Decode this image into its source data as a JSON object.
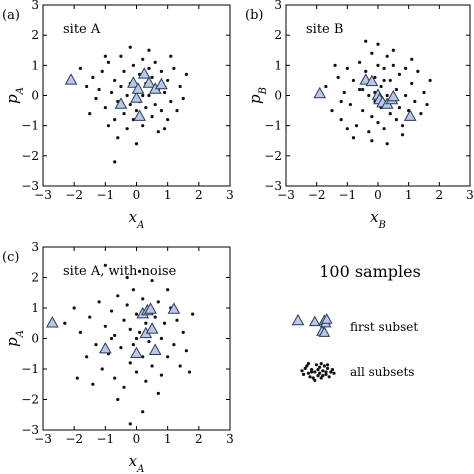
{
  "figure": {
    "legend_title": "100 samples",
    "legend_first": "first subset",
    "legend_all": "all subsets"
  },
  "colors": {
    "triangle_fill": "#b8c9e8",
    "triangle_stroke": "#2b3a55",
    "dot": "#111111"
  },
  "chart_data": [
    {
      "type": "scatter",
      "panel_label": "(a)",
      "annotation": "site A",
      "xlabel": "x_A",
      "ylabel": "p_A",
      "xlim": [
        -3,
        3
      ],
      "ylim": [
        -3,
        3
      ],
      "xticks": [
        "−3",
        "−2",
        "−1",
        "0",
        "1",
        "2",
        "3"
      ],
      "yticks": [
        "−3",
        "−2",
        "−1",
        "0",
        "1",
        "2",
        "3"
      ],
      "series": [
        {
          "role": "all_subsets",
          "points": [
            [
              -1.8,
              0.9
            ],
            [
              -1.6,
              0.3
            ],
            [
              -1.4,
              0.6
            ],
            [
              -1.3,
              -0.1
            ],
            [
              -1.2,
              0.2
            ],
            [
              -1.1,
              0.8
            ],
            [
              -1.0,
              -0.4
            ],
            [
              -0.9,
              1.1
            ],
            [
              -0.8,
              0.1
            ],
            [
              -0.7,
              -0.8
            ],
            [
              -0.7,
              0.5
            ],
            [
              -0.6,
              -0.2
            ],
            [
              -0.5,
              1.3
            ],
            [
              -0.5,
              0.3
            ],
            [
              -0.4,
              -0.6
            ],
            [
              -0.4,
              0.8
            ],
            [
              -0.3,
              0.0
            ],
            [
              -0.3,
              -1.1
            ],
            [
              -0.2,
              0.4
            ],
            [
              -0.2,
              -0.3
            ],
            [
              -0.1,
              1.0
            ],
            [
              -0.1,
              -0.8
            ],
            [
              0.0,
              0.2
            ],
            [
              0.0,
              -0.5
            ],
            [
              0.1,
              0.7
            ],
            [
              0.1,
              -0.2
            ],
            [
              0.2,
              1.2
            ],
            [
              0.2,
              -1.0
            ],
            [
              0.3,
              0.4
            ],
            [
              0.3,
              -0.4
            ],
            [
              0.4,
              0.9
            ],
            [
              0.4,
              0.0
            ],
            [
              0.5,
              -0.7
            ],
            [
              0.5,
              0.6
            ],
            [
              0.6,
              -0.3
            ],
            [
              0.6,
              1.1
            ],
            [
              0.7,
              0.2
            ],
            [
              0.7,
              -1.2
            ],
            [
              0.8,
              -0.5
            ],
            [
              0.8,
              0.8
            ],
            [
              0.9,
              0.1
            ],
            [
              1.0,
              -0.8
            ],
            [
              1.0,
              0.5
            ],
            [
              1.1,
              -0.2
            ],
            [
              1.2,
              0.9
            ],
            [
              1.3,
              -0.5
            ],
            [
              1.4,
              0.3
            ],
            [
              1.5,
              -0.1
            ],
            [
              1.6,
              0.7
            ],
            [
              -0.6,
              -1.4
            ],
            [
              0.0,
              -1.6
            ],
            [
              -0.7,
              -2.2
            ],
            [
              0.4,
              1.5
            ],
            [
              -1.5,
              -0.6
            ],
            [
              1.1,
              1.3
            ],
            [
              -0.2,
              1.6
            ],
            [
              0.9,
              -1.1
            ],
            [
              -1.0,
              1.3
            ],
            [
              0.2,
              0.0
            ],
            [
              -0.9,
              -1.0
            ]
          ]
        },
        {
          "role": "first_subset",
          "points": [
            [
              -2.1,
              0.5
            ],
            [
              -0.5,
              -0.3
            ],
            [
              -0.1,
              0.4
            ],
            [
              0.0,
              -0.1
            ],
            [
              0.05,
              0.2
            ],
            [
              0.1,
              -0.7
            ],
            [
              0.25,
              0.7
            ],
            [
              0.4,
              0.4
            ],
            [
              0.6,
              0.2
            ],
            [
              0.8,
              0.35
            ]
          ]
        }
      ]
    },
    {
      "type": "scatter",
      "panel_label": "(b)",
      "annotation": "site B",
      "xlabel": "x_B",
      "ylabel": "p_B",
      "xlim": [
        -3,
        3
      ],
      "ylim": [
        -3,
        3
      ],
      "xticks": [
        "−3",
        "−2",
        "−1",
        "0",
        "1",
        "2",
        "3"
      ],
      "yticks": [
        "−3",
        "−2",
        "−1",
        "0",
        "1",
        "2",
        "3"
      ],
      "series": [
        {
          "role": "all_subsets",
          "points": [
            [
              -1.7,
              0.3
            ],
            [
              -1.5,
              -0.5
            ],
            [
              -1.3,
              0.6
            ],
            [
              -1.2,
              -0.8
            ],
            [
              -1.1,
              0.1
            ],
            [
              -1.0,
              0.9
            ],
            [
              -0.9,
              -0.3
            ],
            [
              -0.8,
              0.5
            ],
            [
              -0.7,
              -1.0
            ],
            [
              -0.6,
              0.2
            ],
            [
              -0.6,
              1.1
            ],
            [
              -0.5,
              -0.5
            ],
            [
              -0.4,
              0.8
            ],
            [
              -0.3,
              -1.2
            ],
            [
              -0.3,
              0.0
            ],
            [
              -0.2,
              1.4
            ],
            [
              -0.2,
              -0.7
            ],
            [
              -0.1,
              0.6
            ],
            [
              -0.1,
              -0.2
            ],
            [
              0.0,
              1.0
            ],
            [
              0.0,
              -0.9
            ],
            [
              0.1,
              0.3
            ],
            [
              0.1,
              -0.4
            ],
            [
              0.2,
              0.9
            ],
            [
              0.2,
              -1.1
            ],
            [
              0.3,
              0.0
            ],
            [
              0.3,
              1.3
            ],
            [
              0.4,
              -0.6
            ],
            [
              0.4,
              0.5
            ],
            [
              0.5,
              -0.2
            ],
            [
              0.5,
              1.0
            ],
            [
              0.6,
              -0.8
            ],
            [
              0.6,
              0.2
            ],
            [
              0.7,
              -0.4
            ],
            [
              0.7,
              0.7
            ],
            [
              0.8,
              -1.0
            ],
            [
              0.9,
              0.0
            ],
            [
              0.9,
              0.9
            ],
            [
              1.0,
              -0.5
            ],
            [
              1.1,
              0.4
            ],
            [
              1.2,
              -0.2
            ],
            [
              1.3,
              0.8
            ],
            [
              1.4,
              -0.6
            ],
            [
              1.5,
              0.1
            ],
            [
              1.6,
              -0.3
            ],
            [
              -0.4,
              1.8
            ],
            [
              -0.8,
              -1.4
            ],
            [
              0.0,
              1.7
            ],
            [
              0.3,
              -1.6
            ],
            [
              -1.4,
              1.0
            ],
            [
              1.1,
              1.2
            ],
            [
              -0.1,
              0.1
            ],
            [
              0.8,
              -1.3
            ],
            [
              -1.0,
              -1.1
            ],
            [
              -0.5,
              0.2
            ],
            [
              0.2,
              0.5
            ],
            [
              1.7,
              0.5
            ],
            [
              -1.2,
              -0.2
            ],
            [
              0.5,
              1.5
            ],
            [
              -0.2,
              -1.5
            ]
          ]
        },
        {
          "role": "first_subset",
          "points": [
            [
              -1.9,
              0.05
            ],
            [
              -0.4,
              0.5
            ],
            [
              -0.2,
              0.45
            ],
            [
              0.0,
              0.0
            ],
            [
              0.05,
              -0.15
            ],
            [
              0.15,
              -0.25
            ],
            [
              0.3,
              -0.3
            ],
            [
              0.45,
              -0.15
            ],
            [
              0.5,
              -0.05
            ],
            [
              1.05,
              -0.7
            ]
          ]
        }
      ]
    },
    {
      "type": "scatter",
      "panel_label": "(c)",
      "annotation": "site A, with noise",
      "xlabel": "x_A",
      "ylabel": "p_A",
      "xlim": [
        -3,
        3
      ],
      "ylim": [
        -3,
        3
      ],
      "xticks": [
        "−3",
        "−2",
        "−1",
        "0",
        "1",
        "2",
        "3"
      ],
      "yticks": [
        "−3",
        "−2",
        "−1",
        "0",
        "1",
        "2",
        "3"
      ],
      "series": [
        {
          "role": "all_subsets",
          "points": [
            [
              -2.0,
              1.0
            ],
            [
              -1.8,
              0.2
            ],
            [
              -1.6,
              -0.6
            ],
            [
              -1.5,
              0.7
            ],
            [
              -1.3,
              -0.2
            ],
            [
              -1.2,
              1.2
            ],
            [
              -1.1,
              -1.0
            ],
            [
              -1.0,
              0.4
            ],
            [
              -0.9,
              -0.5
            ],
            [
              -0.8,
              0.9
            ],
            [
              -0.7,
              -1.3
            ],
            [
              -0.7,
              0.1
            ],
            [
              -0.6,
              1.4
            ],
            [
              -0.5,
              -0.3
            ],
            [
              -0.4,
              0.6
            ],
            [
              -0.4,
              -1.6
            ],
            [
              -0.3,
              1.1
            ],
            [
              -0.2,
              -0.8
            ],
            [
              -0.2,
              0.3
            ],
            [
              -0.1,
              1.6
            ],
            [
              -0.1,
              -0.2
            ],
            [
              0.0,
              0.8
            ],
            [
              0.0,
              -1.1
            ],
            [
              0.1,
              0.2
            ],
            [
              0.2,
              1.3
            ],
            [
              0.2,
              -0.6
            ],
            [
              0.3,
              0.5
            ],
            [
              0.3,
              -1.4
            ],
            [
              0.4,
              1.0
            ],
            [
              0.4,
              -0.1
            ],
            [
              0.5,
              -0.9
            ],
            [
              0.6,
              0.7
            ],
            [
              0.6,
              -0.4
            ],
            [
              0.7,
              1.2
            ],
            [
              0.8,
              0.0
            ],
            [
              0.8,
              -1.2
            ],
            [
              0.9,
              0.5
            ],
            [
              1.0,
              -0.6
            ],
            [
              1.1,
              1.0
            ],
            [
              1.2,
              -0.2
            ],
            [
              1.3,
              0.6
            ],
            [
              1.4,
              -0.9
            ],
            [
              1.5,
              0.2
            ],
            [
              1.6,
              -0.4
            ],
            [
              1.8,
              0.8
            ],
            [
              -0.3,
              2.0
            ],
            [
              0.1,
              2.2
            ],
            [
              0.2,
              -2.4
            ],
            [
              -1.0,
              2.4
            ],
            [
              -0.2,
              -2.8
            ],
            [
              -1.9,
              -1.3
            ],
            [
              1.7,
              -1.1
            ],
            [
              -2.3,
              0.5
            ],
            [
              0.5,
              1.9
            ],
            [
              -0.6,
              -2.0
            ],
            [
              1.0,
              1.6
            ],
            [
              -1.4,
              -1.5
            ],
            [
              0.0,
              0.0
            ],
            [
              -0.8,
              0.0
            ],
            [
              0.7,
              -1.8
            ]
          ]
        },
        {
          "role": "first_subset",
          "points": [
            [
              -2.7,
              0.5
            ],
            [
              -1.0,
              -0.35
            ],
            [
              0.0,
              -0.5
            ],
            [
              0.2,
              0.8
            ],
            [
              0.3,
              0.15
            ],
            [
              0.35,
              0.9
            ],
            [
              0.45,
              0.95
            ],
            [
              0.5,
              0.3
            ],
            [
              0.6,
              -0.4
            ],
            [
              1.2,
              0.95
            ]
          ]
        }
      ]
    }
  ],
  "legend_sample_dots": [
    [
      0.1,
      0.4
    ],
    [
      0.3,
      0.1
    ],
    [
      -0.2,
      0.0
    ],
    [
      0.5,
      -0.2
    ],
    [
      -0.4,
      0.2
    ],
    [
      0.0,
      -0.3
    ],
    [
      0.6,
      0.3
    ],
    [
      -0.6,
      -0.1
    ],
    [
      0.2,
      -0.5
    ],
    [
      -0.1,
      0.6
    ],
    [
      0.8,
      0.0
    ],
    [
      -0.8,
      0.3
    ],
    [
      0.4,
      0.5
    ],
    [
      -0.3,
      -0.5
    ],
    [
      0.7,
      -0.4
    ],
    [
      -0.7,
      0.5
    ],
    [
      0.0,
      0.2
    ],
    [
      0.3,
      -0.3
    ],
    [
      -0.5,
      -0.4
    ],
    [
      0.9,
      0.2
    ],
    [
      -0.9,
      -0.2
    ],
    [
      0.2,
      0.7
    ],
    [
      -0.2,
      -0.7
    ],
    [
      0.6,
      0.6
    ],
    [
      -0.6,
      0.7
    ],
    [
      0.5,
      0.0
    ],
    [
      -0.4,
      0.0
    ],
    [
      0.1,
      -0.1
    ],
    [
      -1.0,
      0.1
    ],
    [
      1.0,
      -0.1
    ]
  ],
  "legend_sample_triangles": [
    [
      -0.6,
      0.4
    ],
    [
      0.2,
      0.5
    ],
    [
      0.3,
      0.3
    ],
    [
      0.4,
      0.6
    ],
    [
      0.0,
      -0.4
    ],
    [
      0.2,
      -0.5
    ]
  ]
}
